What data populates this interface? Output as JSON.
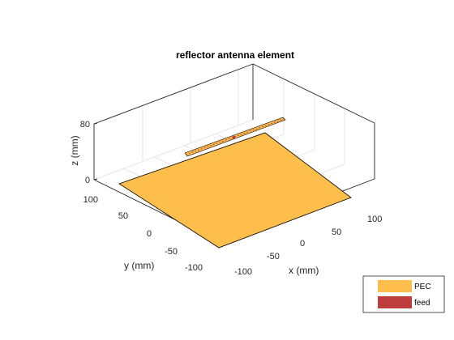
{
  "figure": {
    "title": "reflector antenna element",
    "axes": {
      "xlabel": "x (mm)",
      "ylabel": "y (mm)",
      "zlabel": "z (mm)",
      "xticks": [
        "-100",
        "-50",
        "0",
        "50",
        "100"
      ],
      "yticks": [
        "100",
        "50",
        "0",
        "-50",
        "-100"
      ],
      "zticks": [
        "80",
        "0"
      ],
      "grid": true,
      "box": true,
      "view": "3-D isometric"
    },
    "legend": {
      "placement": "bottom-right",
      "items": [
        {
          "label": "PEC",
          "color": "#FDBE4C"
        },
        {
          "label": "feed",
          "color": "#BE3D3D"
        }
      ]
    }
  },
  "colors": {
    "reflector": "#FDBE4C",
    "feed": "#BE3D3D",
    "axis": "#262626",
    "grid": "#dfdfdf"
  }
}
